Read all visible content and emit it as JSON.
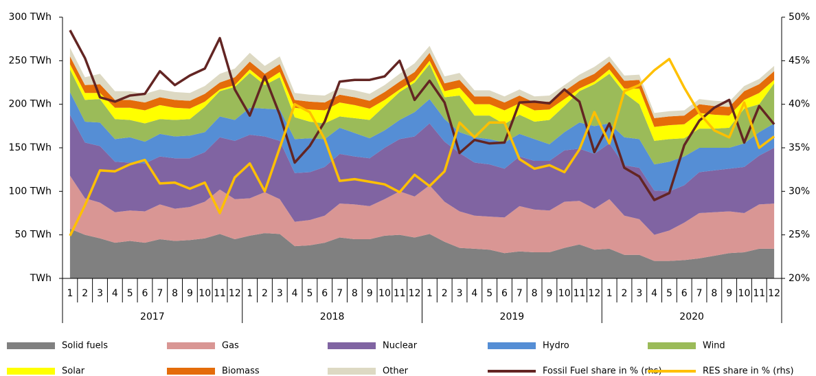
{
  "chart_data": {
    "type": "area",
    "categories": [
      "1",
      "2",
      "3",
      "4",
      "5",
      "6",
      "7",
      "8",
      "9",
      "10",
      "11",
      "12",
      "1",
      "2",
      "3",
      "4",
      "5",
      "6",
      "7",
      "8",
      "9",
      "10",
      "11",
      "12",
      "1",
      "2",
      "3",
      "4",
      "5",
      "6",
      "7",
      "8",
      "9",
      "10",
      "11",
      "12",
      "1",
      "2",
      "3",
      "4",
      "5",
      "6",
      "7",
      "8",
      "9",
      "10",
      "11",
      "12"
    ],
    "groups": [
      "2017",
      "2018",
      "2019",
      "2020"
    ],
    "ylim": [
      0,
      300
    ],
    "yticks": [
      {
        "value": 0,
        "label": "TWh"
      },
      {
        "value": 50,
        "label": "50 TWh"
      },
      {
        "value": 100,
        "label": "100 TWh"
      },
      {
        "value": 150,
        "label": "150 TWh"
      },
      {
        "value": 200,
        "label": "200 TWh"
      },
      {
        "value": 250,
        "label": "250 TWh"
      },
      {
        "value": 300,
        "label": "300 TWh"
      }
    ],
    "y2lim": [
      20,
      50
    ],
    "y2ticks": [
      {
        "value": 20,
        "label": "20%"
      },
      {
        "value": 25,
        "label": "25%"
      },
      {
        "value": 30,
        "label": "30%"
      },
      {
        "value": 35,
        "label": "35%"
      },
      {
        "value": 40,
        "label": "40%"
      },
      {
        "value": 45,
        "label": "45%"
      },
      {
        "value": 50,
        "label": "50%"
      }
    ],
    "series": [
      {
        "name": "Solid fuels",
        "color": "#808080",
        "values": [
          57,
          50,
          46,
          41,
          43,
          41,
          45,
          43,
          44,
          46,
          51,
          45,
          49,
          52,
          51,
          37,
          38,
          41,
          47,
          45,
          45,
          49,
          50,
          47,
          51,
          42,
          35,
          34,
          33,
          29,
          31,
          30,
          30,
          35,
          39,
          33,
          34,
          27,
          27,
          20,
          20,
          21,
          23,
          26,
          29,
          30,
          34,
          34
        ]
      },
      {
        "name": "Gas",
        "color": "#d99694",
        "values": [
          61,
          42,
          41,
          35,
          35,
          36,
          40,
          37,
          38,
          42,
          51,
          46,
          43,
          47,
          40,
          28,
          29,
          31,
          39,
          40,
          38,
          42,
          50,
          47,
          56,
          46,
          42,
          38,
          38,
          41,
          52,
          49,
          48,
          53,
          50,
          47,
          57,
          45,
          41,
          30,
          35,
          43,
          52,
          50,
          48,
          45,
          51,
          52
        ]
      },
      {
        "name": "Nuclear",
        "color": "#8064a2",
        "values": [
          70,
          64,
          65,
          58,
          55,
          55,
          55,
          58,
          56,
          57,
          60,
          67,
          73,
          64,
          67,
          56,
          55,
          56,
          57,
          55,
          55,
          59,
          60,
          69,
          71,
          69,
          67,
          61,
          60,
          56,
          57,
          56,
          57,
          59,
          60,
          63,
          64,
          58,
          59,
          51,
          45,
          43,
          47,
          48,
          49,
          53,
          56,
          64
        ]
      },
      {
        "name": "Hydro",
        "color": "#558ed5",
        "values": [
          26,
          24,
          27,
          26,
          29,
          25,
          26,
          25,
          26,
          23,
          24,
          24,
          31,
          32,
          36,
          39,
          39,
          32,
          30,
          27,
          23,
          20,
          22,
          28,
          28,
          26,
          24,
          29,
          29,
          30,
          26,
          25,
          19,
          21,
          30,
          32,
          23,
          32,
          33,
          30,
          34,
          33,
          28,
          26,
          24,
          27,
          27,
          28
        ]
      },
      {
        "name": "Wind",
        "color": "#9bbb59",
        "values": [
          26,
          25,
          27,
          23,
          20,
          21,
          17,
          19,
          19,
          29,
          29,
          38,
          40,
          27,
          37,
          25,
          19,
          18,
          13,
          17,
          21,
          28,
          32,
          34,
          40,
          25,
          42,
          25,
          27,
          21,
          22,
          20,
          28,
          30,
          36,
          48,
          57,
          51,
          40,
          27,
          26,
          21,
          22,
          22,
          23,
          40,
          32,
          46
        ]
      },
      {
        "name": "Solar",
        "color": "#ffff00",
        "values": [
          6,
          8,
          7,
          13,
          14,
          15,
          16,
          14,
          12,
          6,
          2,
          2,
          4,
          4,
          6,
          11,
          14,
          15,
          16,
          15,
          13,
          7,
          3,
          3,
          4,
          7,
          9,
          13,
          13,
          16,
          13,
          13,
          12,
          8,
          3,
          3,
          5,
          5,
          18,
          16,
          16,
          16,
          18,
          16,
          14,
          10,
          13,
          4
        ]
      },
      {
        "name": "Biomass",
        "color": "#e46c0a",
        "values": [
          9,
          9,
          10,
          9,
          9,
          9,
          9,
          9,
          9,
          9,
          8,
          9,
          9,
          9,
          9,
          9,
          9,
          9,
          9,
          9,
          9,
          9,
          9,
          9,
          9,
          9,
          9,
          9,
          9,
          9,
          9,
          9,
          9,
          9,
          9,
          9,
          9,
          9,
          10,
          10,
          10,
          10,
          10,
          10,
          10,
          10,
          10,
          10
        ]
      },
      {
        "name": "Other",
        "color": "#ddd9c3",
        "values": [
          10,
          9,
          12,
          10,
          10,
          10,
          9,
          9,
          9,
          9,
          10,
          10,
          10,
          9,
          9,
          8,
          8,
          8,
          8,
          8,
          8,
          8,
          9,
          10,
          8,
          8,
          8,
          7,
          7,
          7,
          7,
          7,
          7,
          7,
          7,
          8,
          6,
          6,
          6,
          6,
          6,
          6,
          6,
          6,
          6,
          6,
          6,
          6
        ]
      },
      {
        "name": "Fossil Fuel share in % (rhs)",
        "color": "#632523",
        "axis": "y2",
        "values": [
          48.5,
          45.3,
          40.8,
          40.3,
          41.0,
          41.2,
          43.8,
          42.2,
          43.3,
          44.1,
          47.6,
          41.7,
          38.7,
          43.2,
          38.8,
          33.3,
          35.2,
          38.0,
          42.6,
          42.8,
          42.8,
          43.2,
          45.0,
          40.5,
          42.7,
          40.2,
          34.4,
          35.9,
          35.5,
          35.6,
          40.2,
          40.3,
          40.1,
          41.7,
          40.3,
          34.5,
          37.8,
          32.7,
          31.7,
          29.0,
          29.8,
          35.3,
          38.1,
          39.6,
          40.5,
          35.6,
          39.8,
          37.7
        ]
      },
      {
        "name": "RES share in % (rhs)",
        "color": "#ffc000",
        "axis": "y2",
        "values": [
          24.9,
          28.4,
          32.4,
          32.3,
          33.1,
          33.6,
          30.9,
          31.0,
          30.3,
          31.0,
          27.5,
          31.6,
          33.2,
          30.0,
          35.0,
          40.0,
          39.1,
          36.0,
          31.2,
          31.4,
          31.1,
          30.8,
          29.9,
          31.9,
          30.6,
          32.3,
          37.9,
          36.2,
          37.9,
          37.9,
          33.7,
          32.6,
          33.0,
          32.2,
          34.8,
          39.1,
          35.5,
          41.5,
          42.2,
          43.9,
          45.2,
          41.9,
          39.0,
          37.0,
          36.2,
          40.2,
          35.0,
          36.3
        ]
      }
    ]
  }
}
